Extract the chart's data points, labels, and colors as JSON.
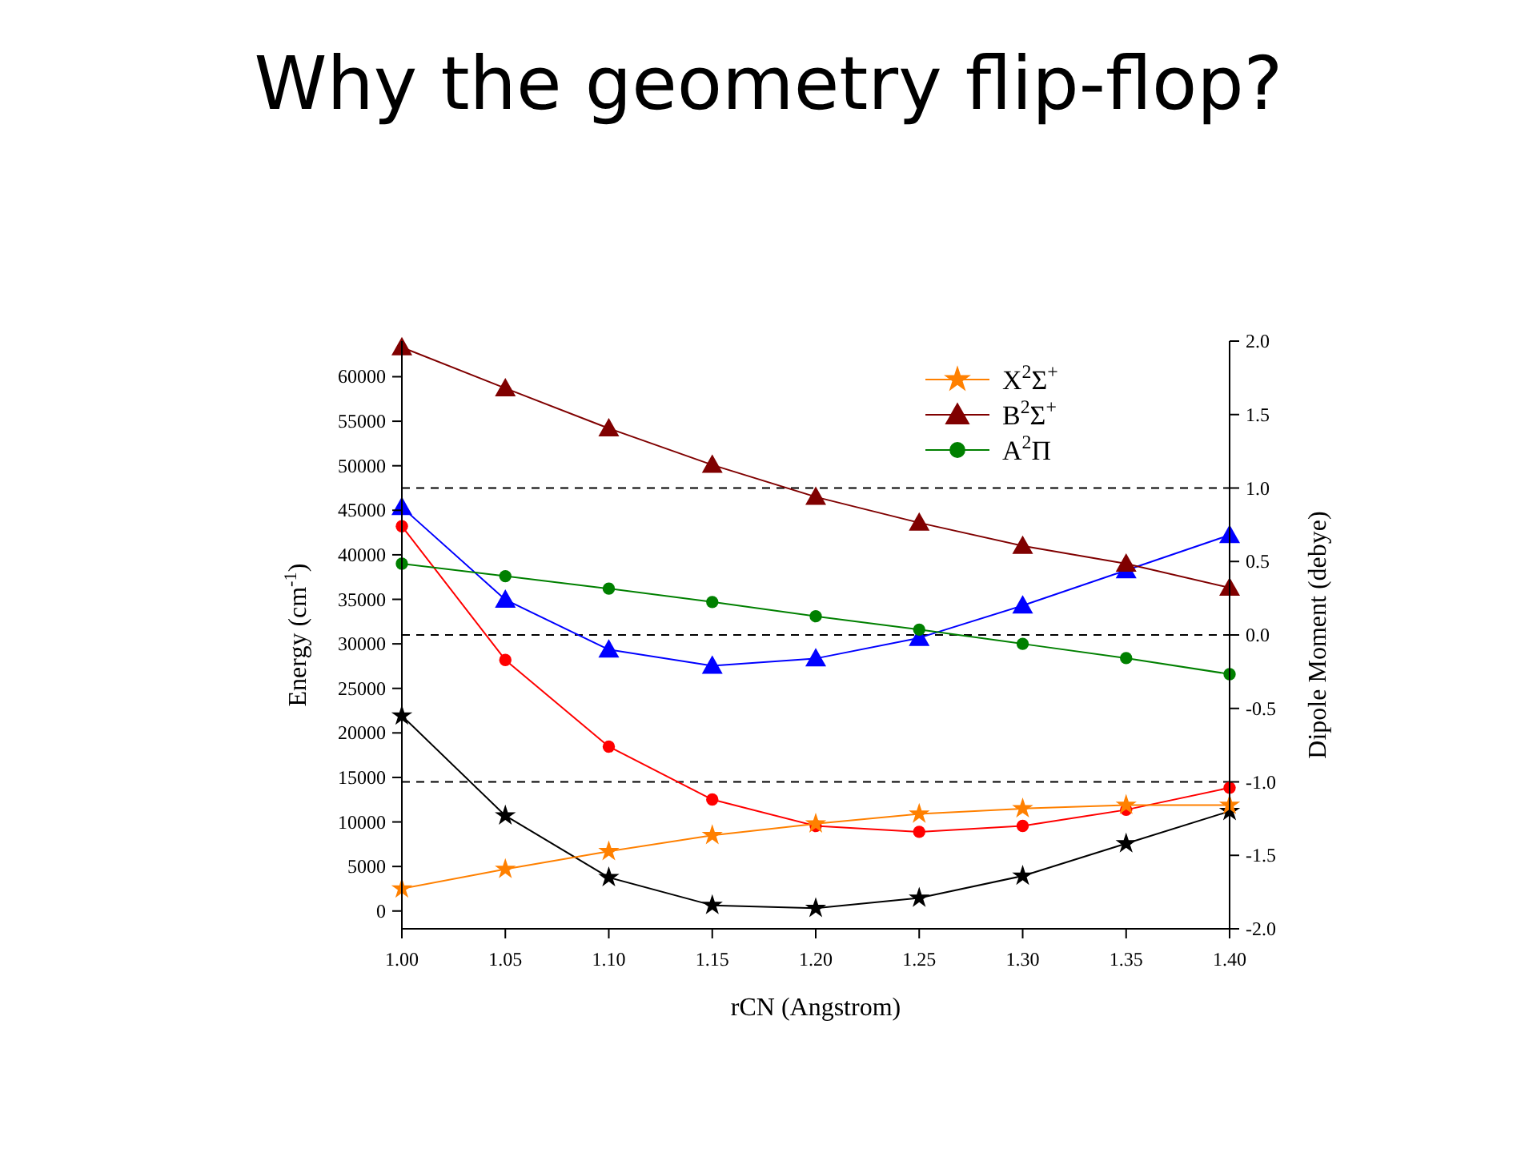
{
  "chart_data": {
    "type": "line",
    "title": "Why the geometry flip-flop?",
    "xlabel": "rCN (Angstrom)",
    "ylabel": "Energy (cm$^{-1}$)",
    "y2label": "Dipole Moment (debye)",
    "x": [
      1.0,
      1.05,
      1.1,
      1.15,
      1.2,
      1.25,
      1.3,
      1.35,
      1.4
    ],
    "xlim": [
      1.0,
      1.4
    ],
    "xticks": [
      {
        "value": 1.0,
        "label": "1.00"
      },
      1.05,
      {
        "value": 1.1,
        "label": "1.10"
      },
      1.15,
      {
        "value": 1.2,
        "label": "1.20"
      },
      1.25,
      {
        "value": 1.3,
        "label": "1.30"
      },
      1.35,
      {
        "value": 1.4,
        "label": "1.40"
      }
    ],
    "ylim": [
      -2000,
      64000
    ],
    "yticks": [
      0,
      5000,
      10000,
      15000,
      20000,
      25000,
      30000,
      35000,
      40000,
      45000,
      50000,
      55000,
      60000
    ],
    "y2lim": [
      -2.0,
      2.0
    ],
    "y2ticks": [
      {
        "value": -2,
        "label": "-2.0"
      },
      -1.5,
      {
        "value": -1,
        "label": "-1.0"
      },
      -0.5,
      {
        "value": 0,
        "label": "0.0"
      },
      0.5,
      {
        "value": 1,
        "label": "1.0"
      },
      1.5,
      {
        "value": 2,
        "label": "2.0"
      }
    ],
    "grid": false,
    "legend": "top right",
    "ref_lines": [
      {
        "axis": "y2",
        "value": 1.0,
        "line_style": "dashed",
        "color": "#000000"
      },
      {
        "axis": "y2",
        "value": 0.0,
        "line_style": "dashed",
        "color": "#000000"
      },
      {
        "axis": "y2",
        "value": -1.0,
        "line_style": "dashed",
        "color": "#000000"
      }
    ],
    "series": [
      {
        "name": "X$^{2}$Σ$^{+}$",
        "color": "#ff8000",
        "marker": "star",
        "values": [
          2500,
          4700,
          6700,
          8500,
          9800,
          10900,
          11500,
          11900,
          11900
        ]
      },
      {
        "name": "B$^{2}$Σ$^{+}$",
        "color": "#800000",
        "marker": "triangle",
        "values": [
          63300,
          58700,
          54200,
          50100,
          46500,
          43600,
          41000,
          39000,
          36300
        ]
      },
      {
        "name": "A$^{2}$Π",
        "color": "#008000",
        "marker": "circle",
        "values": [
          39000,
          37600,
          36200,
          34700,
          33100,
          31600,
          30000,
          28400,
          26600
        ]
      },
      {
        "color": "#0000ff",
        "marker": "triangle",
        "axis": "y2",
        "values": [
          0.87,
          0.24,
          -0.1,
          -0.21,
          -0.16,
          -0.02,
          0.2,
          0.44,
          0.68
        ]
      },
      {
        "color": "#ff0000",
        "marker": "circle",
        "axis": "y2",
        "values": [
          0.74,
          -0.17,
          -0.76,
          -1.12,
          -1.3,
          -1.34,
          -1.3,
          -1.19,
          -1.04
        ]
      },
      {
        "color": "#000000",
        "marker": "star",
        "axis": "y2",
        "values": [
          -0.55,
          -1.23,
          -1.65,
          -1.84,
          -1.86,
          -1.79,
          -1.64,
          -1.42,
          -1.2
        ]
      }
    ]
  }
}
